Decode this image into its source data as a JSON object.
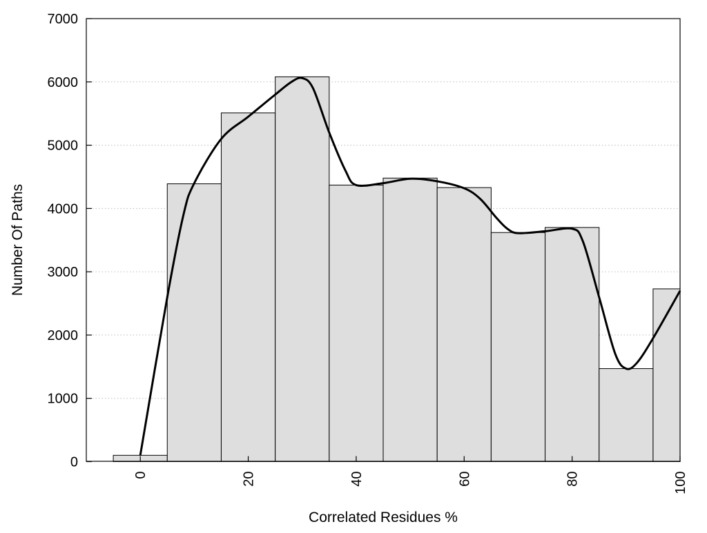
{
  "chart_data": {
    "type": "bar",
    "title": "",
    "xlabel": "Correlated Residues %",
    "ylabel": "Number Of Paths",
    "xlim": [
      -10,
      100
    ],
    "ylim": [
      0,
      7000
    ],
    "xticks": [
      0,
      20,
      40,
      60,
      80,
      100
    ],
    "yticks": [
      0,
      1000,
      2000,
      3000,
      4000,
      5000,
      6000,
      7000
    ],
    "grid": "horizontal dotted",
    "bin_width": 10,
    "bars": {
      "x": [
        0,
        10,
        20,
        30,
        40,
        50,
        60,
        70,
        80,
        90,
        100
      ],
      "values": [
        100,
        4390,
        5510,
        6080,
        4370,
        4480,
        4330,
        3620,
        3700,
        1470,
        2730
      ],
      "fill": "#dedede",
      "stroke": "#000000"
    },
    "curve": {
      "type": "line",
      "color": "#000000",
      "x": [
        0,
        5,
        8,
        10,
        15,
        20,
        25,
        28,
        30,
        32,
        35,
        38,
        40,
        45,
        50,
        55,
        60,
        63,
        66,
        68,
        70,
        75,
        80,
        82,
        85,
        88,
        90,
        92,
        95,
        100
      ],
      "y": [
        100,
        2600,
        3900,
        4400,
        5100,
        5450,
        5800,
        6000,
        6060,
        5900,
        5200,
        4600,
        4370,
        4400,
        4470,
        4430,
        4320,
        4150,
        3850,
        3680,
        3610,
        3640,
        3680,
        3480,
        2600,
        1700,
        1470,
        1560,
        1950,
        2700
      ]
    }
  }
}
